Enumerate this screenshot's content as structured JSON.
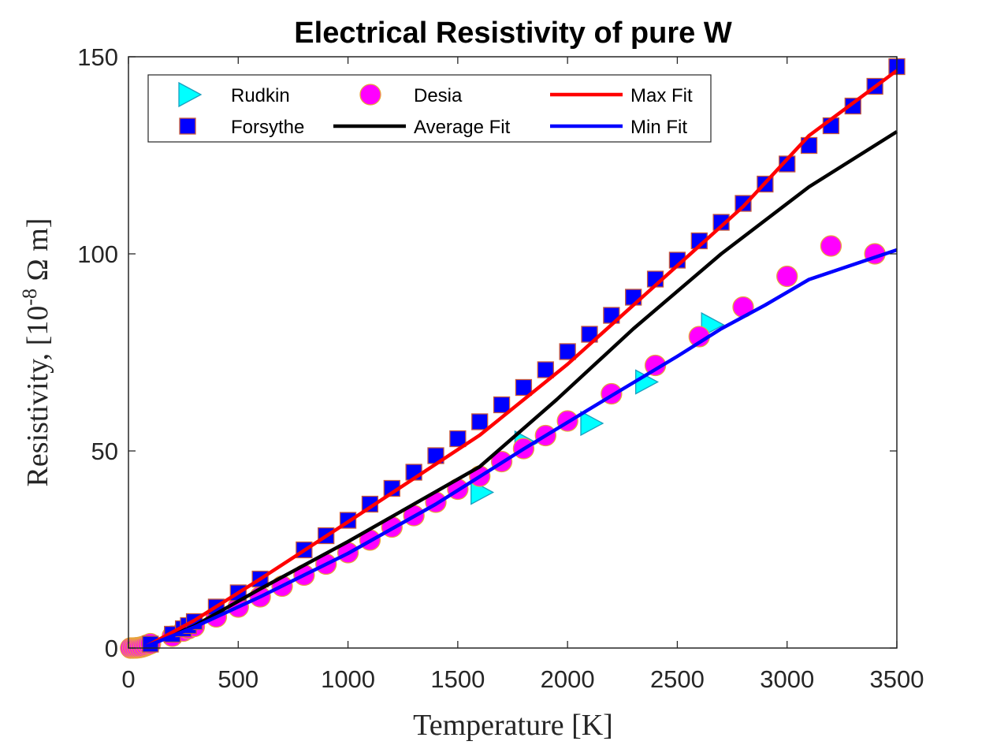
{
  "chart_data": {
    "type": "scatter",
    "title": "Electrical Resistivity of pure W",
    "xlabel": "Temperature [K]",
    "ylabel_parts": {
      "main": "Resistivity, [10",
      "sup": "-8",
      "unit": " Ω m]"
    },
    "xlim": [
      0,
      3500
    ],
    "ylim": [
      0,
      150
    ],
    "xticks": [
      "0",
      "500",
      "1000",
      "1500",
      "2000",
      "2500",
      "3000",
      "3500"
    ],
    "yticks": [
      "0",
      "50",
      "100",
      "150"
    ],
    "legend_position": "top-left",
    "series": [
      {
        "name": "Rudkin",
        "kind": "markers",
        "marker": "triangle-right",
        "color": "#00ffff",
        "edge": "#1a9fbf",
        "x": [
          1600,
          1800,
          2100,
          2350,
          2650
        ],
        "y": [
          39.5,
          52,
          57,
          67.5,
          82
        ]
      },
      {
        "name": "Desia",
        "kind": "markers",
        "marker": "circle",
        "color": "#ff00ff",
        "edge": "#e8a33c",
        "x": [
          10,
          20,
          30,
          40,
          50,
          60,
          70,
          80,
          90,
          100,
          200,
          250,
          273,
          300,
          400,
          500,
          600,
          700,
          800,
          900,
          1000,
          1100,
          1200,
          1300,
          1400,
          1500,
          1600,
          1700,
          1800,
          1900,
          2000,
          2200,
          2400,
          2600,
          2800,
          3000,
          3200,
          3400
        ],
        "y": [
          0.001,
          0.005,
          0.02,
          0.06,
          0.14,
          0.26,
          0.43,
          0.64,
          0.87,
          1.1,
          3.0,
          4.3,
          4.9,
          5.5,
          7.9,
          10.4,
          13.0,
          15.7,
          18.5,
          21.3,
          24.2,
          27.4,
          30.7,
          33.6,
          37.0,
          40.3,
          43.6,
          47.3,
          50.6,
          53.9,
          57.6,
          64.5,
          71.7,
          79.0,
          86.5,
          94.3,
          102.0,
          100.0
        ]
      },
      {
        "name": "Forsythe",
        "kind": "markers",
        "marker": "square",
        "color": "#0000ff",
        "edge": "#c85a3c",
        "x": [
          100,
          200,
          250,
          273,
          300,
          400,
          500,
          600,
          800,
          900,
          1000,
          1100,
          1200,
          1300,
          1400,
          1500,
          1600,
          1700,
          1800,
          1900,
          2000,
          2100,
          2200,
          2300,
          2400,
          2500,
          2600,
          2700,
          2800,
          2900,
          3000,
          3100,
          3200,
          3300,
          3400,
          3500
        ],
        "y": [
          1.0,
          3.5,
          4.9,
          5.7,
          6.7,
          10.4,
          14.0,
          17.5,
          24.9,
          28.5,
          32.4,
          36.5,
          40.5,
          44.6,
          48.8,
          53.1,
          57.4,
          61.7,
          66.1,
          70.6,
          75.2,
          79.6,
          84.4,
          89.0,
          93.6,
          98.4,
          103.3,
          108.0,
          112.8,
          117.7,
          122.8,
          127.5,
          132.5,
          137.5,
          142.5,
          147.5
        ]
      },
      {
        "name": "Average Fit",
        "kind": "line",
        "color": "#000000",
        "x": [
          80,
          300,
          600,
          1000,
          1600,
          1950,
          2300,
          2700,
          3100,
          3500
        ],
        "y": [
          0.4,
          5.6,
          15.0,
          27.0,
          46.0,
          63.0,
          81.0,
          100.0,
          117.0,
          131.0
        ]
      },
      {
        "name": "Max Fit",
        "kind": "line",
        "color": "#ff0000",
        "x": [
          80,
          300,
          600,
          1000,
          1600,
          2000,
          2400,
          2800,
          3100,
          3500
        ],
        "y": [
          0.4,
          7.0,
          17.5,
          32.0,
          54.0,
          72.0,
          92.0,
          112.0,
          130.0,
          146.5
        ]
      },
      {
        "name": "Min Fit",
        "kind": "line",
        "color": "#0000ff",
        "x": [
          80,
          300,
          600,
          1000,
          1400,
          1800,
          2200,
          2500,
          2700,
          2900,
          3100,
          3500
        ],
        "y": [
          0.4,
          5.3,
          13.0,
          24.0,
          36.5,
          50.5,
          64.0,
          74.0,
          81.0,
          87.0,
          93.5,
          101.0
        ]
      }
    ],
    "legend_order": [
      "Rudkin",
      "Desia",
      "Max Fit",
      "Forsythe",
      "Average Fit",
      "Min Fit"
    ]
  }
}
